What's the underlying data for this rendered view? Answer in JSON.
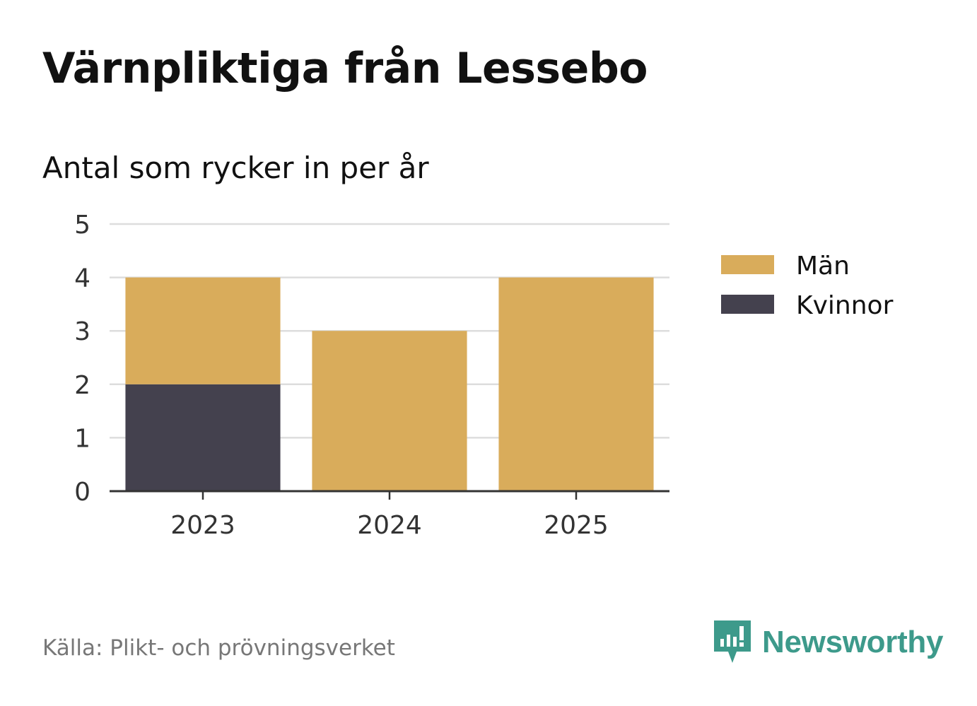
{
  "title": "Värnpliktiga från Lessebo",
  "subtitle": "Antal som rycker in per år",
  "source": "Källa: Plikt- och prövningsverket",
  "brand": {
    "name": "Newsworthy",
    "icon": "newsworthy-logo-icon",
    "color": "#3d9a8b"
  },
  "chart_data": {
    "type": "bar",
    "stacked": true,
    "categories": [
      "2023",
      "2024",
      "2025"
    ],
    "series": [
      {
        "name": "Kvinnor",
        "values": [
          2,
          0,
          0
        ],
        "color": "#44414e"
      },
      {
        "name": "Män",
        "values": [
          2,
          3,
          4
        ],
        "color": "#d9ac5b"
      }
    ],
    "legend_order": [
      "Män",
      "Kvinnor"
    ],
    "legend_position": "right",
    "ylim": [
      0,
      5
    ],
    "yticks": [
      0,
      1,
      2,
      3,
      4,
      5
    ],
    "grid": true,
    "xlabel": "",
    "ylabel": ""
  }
}
